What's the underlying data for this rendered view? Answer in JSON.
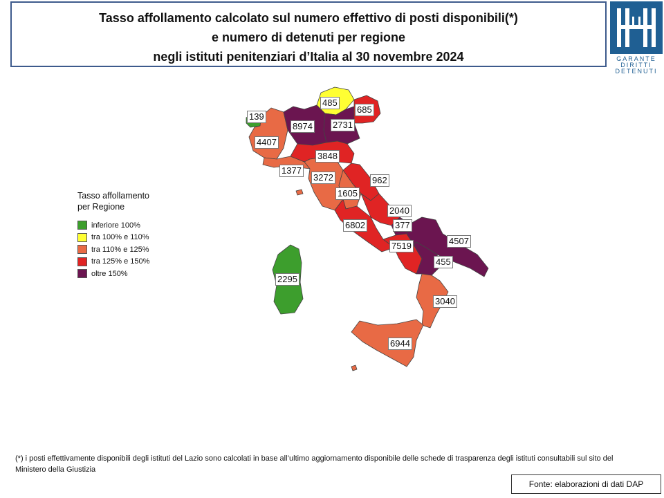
{
  "title": {
    "lines": [
      "Tasso affollamento calcolato sul numero effettivo di posti disponibili(*)",
      "e numero di detenuti per regione",
      "negli istituti penitenziari d’Italia al 30 novembre 2024"
    ]
  },
  "logo": {
    "text_lines": [
      "GARANTE",
      "DIRITTI",
      "DETENUTI"
    ],
    "color": "#1f5f93"
  },
  "legend": {
    "title_lines": [
      "Tasso affollamento",
      "per Regione"
    ],
    "items": [
      {
        "label": "inferiore 100%",
        "color": "#3d9e2d"
      },
      {
        "label": "tra 100% e 110%",
        "color": "#ffff33"
      },
      {
        "label": "tra 110% e 125%",
        "color": "#e86a45"
      },
      {
        "label": "tra 125% e 150%",
        "color": "#e02424"
      },
      {
        "label": "oltre 150%",
        "color": "#6b1550"
      }
    ]
  },
  "regions": [
    {
      "value": "139",
      "class": "inferiore 100%"
    },
    {
      "value": "485",
      "class": "tra 100% e 110%"
    },
    {
      "value": "685",
      "class": "tra 125% e 150%"
    },
    {
      "value": "8974",
      "class": "oltre 150%"
    },
    {
      "value": "2731",
      "class": "oltre 150%"
    },
    {
      "value": "4407",
      "class": "tra 110% e 125%"
    },
    {
      "value": "3848",
      "class": "tra 125% e 150%"
    },
    {
      "value": "1377",
      "class": "tra 110% e 125%"
    },
    {
      "value": "3272",
      "class": "tra 110% e 125%"
    },
    {
      "value": "962",
      "class": "tra 125% e 150%"
    },
    {
      "value": "1605",
      "class": "tra 110% e 125%"
    },
    {
      "value": "2040",
      "class": "tra 125% e 150%"
    },
    {
      "value": "6802",
      "class": "tra 125% e 150%"
    },
    {
      "value": "377",
      "class": "oltre 150%"
    },
    {
      "value": "4507",
      "class": "oltre 150%"
    },
    {
      "value": "7519",
      "class": "tra 125% e 150%"
    },
    {
      "value": "455",
      "class": "oltre 150%"
    },
    {
      "value": "2295",
      "class": "inferiore 100%"
    },
    {
      "value": "3040",
      "class": "tra 110% e 125%"
    },
    {
      "value": "6944",
      "class": "tra 110% e 125%"
    }
  ],
  "footnote": "(*) i posti effettivamente disponibili  degli istituti del Lazio sono calcolati in base all’ultimo aggiornamento disponibile  delle schede di trasparenza degli istituti consultabili sul sito del Ministero della Giustizia",
  "source": "Fonte: elaborazioni di dati DAP"
}
